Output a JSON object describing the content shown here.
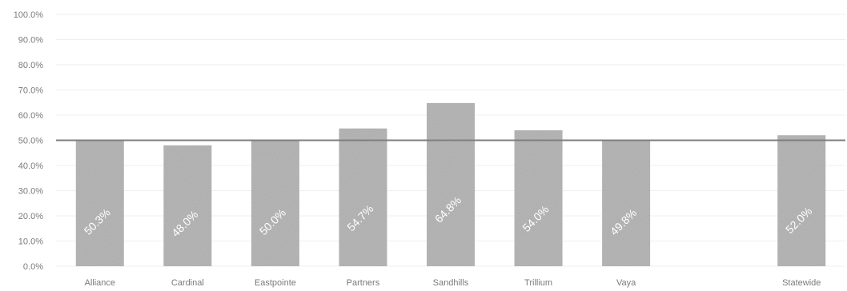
{
  "chart_data": {
    "type": "bar",
    "categories": [
      "Alliance",
      "Cardinal",
      "Eastpointe",
      "Partners",
      "Sandhills",
      "Trillium",
      "Vaya",
      "",
      "Statewide"
    ],
    "values": [
      50.3,
      48.0,
      50.0,
      54.7,
      64.8,
      54.0,
      49.8,
      null,
      52.0
    ],
    "data_labels": [
      "50.3%",
      "48.0%",
      "50.0%",
      "54.7%",
      "64.8%",
      "54.0%",
      "49.8%",
      "",
      "52.0%"
    ],
    "y_ticks": [
      "0.0%",
      "10.0%",
      "20.0%",
      "30.0%",
      "40.0%",
      "50.0%",
      "60.0%",
      "70.0%",
      "80.0%",
      "90.0%",
      "100.0%"
    ],
    "ylim": [
      0,
      100
    ],
    "reference_line": 50.0,
    "grid": true,
    "bar_color": "#b9b9b9",
    "reference_line_color": "#7f7f7f"
  }
}
